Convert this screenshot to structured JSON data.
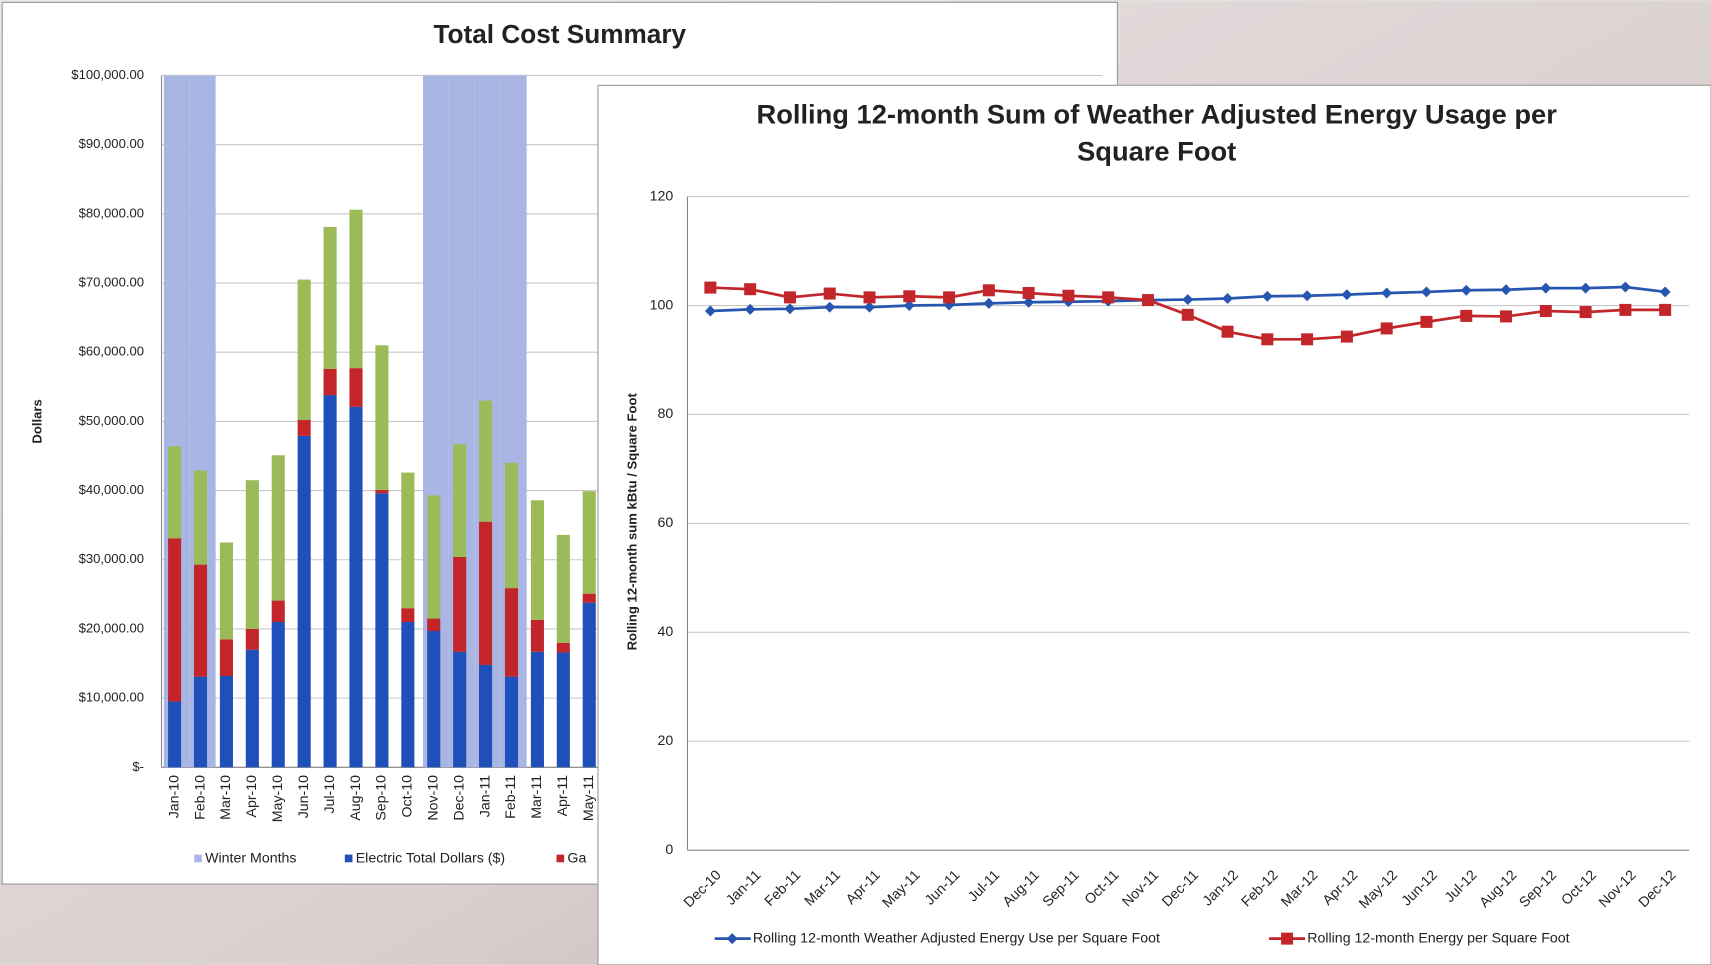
{
  "chart_data": [
    {
      "type": "bar",
      "title": "Total Cost Summary",
      "y_label": "Dollars",
      "categories": [
        "Jan-10",
        "Feb-10",
        "Mar-10",
        "Apr-10",
        "May-10",
        "Jun-10",
        "Jul-10",
        "Aug-10",
        "Sep-10",
        "Oct-10",
        "Nov-10",
        "Dec-10",
        "Jan-11",
        "Feb-11",
        "Mar-11",
        "Apr-11",
        "May-11"
      ],
      "stacked": true,
      "grid": true,
      "ylim": [
        0,
        100000
      ],
      "yticks": [
        {
          "value": 0,
          "label": "$-"
        },
        {
          "value": 10000,
          "label": "$10,000.00"
        },
        {
          "value": 20000,
          "label": "$20,000.00"
        },
        {
          "value": 30000,
          "label": "$30,000.00"
        },
        {
          "value": 40000,
          "label": "$40,000.00"
        },
        {
          "value": 50000,
          "label": "$50,000.00"
        },
        {
          "value": 60000,
          "label": "$60,000.00"
        },
        {
          "value": 70000,
          "label": "$70,000.00"
        },
        {
          "value": 80000,
          "label": "$80,000.00"
        },
        {
          "value": 90000,
          "label": "$90,000.00"
        },
        {
          "value": 100000,
          "label": "$100,000.00"
        }
      ],
      "background_series": {
        "name": "Winter Months",
        "color": "#a9b6e4",
        "values": [
          100000,
          100000,
          0,
          0,
          0,
          0,
          0,
          0,
          0,
          0,
          100000,
          100000,
          100000,
          100000,
          0,
          0,
          0
        ]
      },
      "series": [
        {
          "name": "Electric Total Dollars ($)",
          "color": "#1f4fb8",
          "values": [
            9500,
            13100,
            13200,
            17000,
            21000,
            47900,
            53800,
            52100,
            39600,
            21000,
            19700,
            16700,
            14800,
            13100,
            16700,
            16600,
            23800
          ]
        },
        {
          "name": "Ga",
          "color": "#c3262a",
          "values": [
            23600,
            16200,
            5300,
            3000,
            3100,
            2300,
            3800,
            5600,
            500,
            2000,
            1800,
            13700,
            20700,
            12800,
            4600,
            1400,
            1300
          ]
        },
        {
          "color": "#9bbb59",
          "values": [
            13300,
            13600,
            14000,
            21500,
            21000,
            20300,
            20500,
            22900,
            20900,
            19600,
            17800,
            16300,
            17500,
            18100,
            17300,
            15600,
            14800
          ]
        }
      ]
    },
    {
      "type": "line",
      "title": "Rolling 12-month Sum of Weather Adjusted Energy Usage per Square Foot",
      "y_label": "Rolling 12-month sum kBtu / Square Foot",
      "categories": [
        "Dec-10",
        "Jan-11",
        "Feb-11",
        "Mar-11",
        "Apr-11",
        "May-11",
        "Jun-11",
        "Jul-11",
        "Aug-11",
        "Sep-11",
        "Oct-11",
        "Nov-11",
        "Dec-11",
        "Jan-12",
        "Feb-12",
        "Mar-12",
        "Apr-12",
        "May-12",
        "Jun-12",
        "Jul-12",
        "Aug-12",
        "Sep-12",
        "Oct-12",
        "Nov-12",
        "Dec-12"
      ],
      "ylim": [
        0,
        120
      ],
      "yticks": [
        0,
        20,
        40,
        60,
        80,
        100,
        120
      ],
      "grid": true,
      "series": [
        {
          "name": "Rolling 12-month Weather Adjusted Energy Use per Square Foot",
          "color": "#2656b0",
          "marker": "diamond",
          "values": [
            99,
            99.3,
            99.4,
            99.7,
            99.7,
            100,
            100.1,
            100.4,
            100.6,
            100.7,
            100.8,
            101,
            101.1,
            101.3,
            101.7,
            101.8,
            102,
            102.3,
            102.5,
            102.8,
            102.9,
            103.2,
            103.2,
            103.4,
            102.5
          ]
        },
        {
          "name": "Rolling 12-month Energy per Square Foot",
          "color": "#c3262a",
          "marker": "square",
          "values": [
            103.3,
            103,
            101.5,
            102.2,
            101.5,
            101.7,
            101.5,
            102.8,
            102.3,
            101.8,
            101.5,
            101,
            98.3,
            95.2,
            93.8,
            93.8,
            94.3,
            95.8,
            97,
            98.1,
            98,
            99,
            98.8,
            99.2,
            99.2
          ]
        }
      ]
    }
  ]
}
